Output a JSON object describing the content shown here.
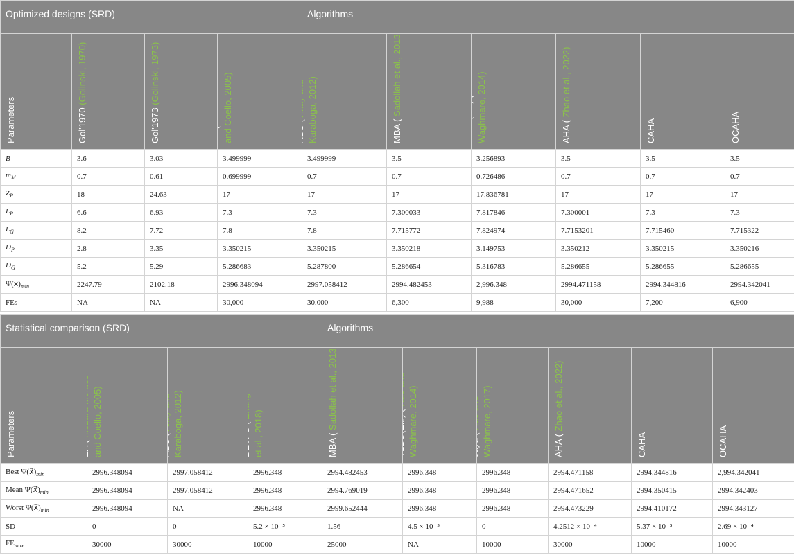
{
  "table1": {
    "header_left": "Optimized designs (SRD)",
    "header_right": "Algorithms",
    "param_header": "Parameters",
    "columns": [
      {
        "name": "Gol'1970",
        "cite_lines": [
          "(Golinski, 1970)"
        ]
      },
      {
        "name": "Gol'1973",
        "cite_lines": [
          "(Golinski, 1973)"
        ]
      },
      {
        "name": "EA (",
        "cite_lines": [
          "Mezura-Montes",
          "and Coello, 2005)"
        ]
      },
      {
        "name": "ABC (",
        "cite_lines": [
          "Akay and",
          "Karaboga, 2012)"
        ]
      },
      {
        "name": "MBA (",
        "cite_lines": [
          "Sadollah et al., 2013)"
        ]
      },
      {
        "name": "TLBO(Elt.) (",
        "cite_lines": [
          "Rao and",
          "Waghmare, 2014)"
        ]
      },
      {
        "name": "AHA (",
        "cite_lines": [
          "Zhao et al., 2022)"
        ]
      },
      {
        "name": "CAHA",
        "cite_lines": []
      },
      {
        "name": "OCAHA",
        "cite_lines": []
      }
    ],
    "rows": [
      {
        "base": "B",
        "sub": "",
        "values": [
          "3.6",
          "3.03",
          "3.499999",
          "3.499999",
          "3.5",
          "3.256893",
          "3.5",
          "3.5",
          "3.5"
        ]
      },
      {
        "base": "m",
        "sub": "M",
        "values": [
          "0.7",
          "0.61",
          "0.699999",
          "0.7",
          "0.7",
          "0.726486",
          "0.7",
          "0.7",
          "0.7"
        ]
      },
      {
        "base": "Z",
        "sub": "P",
        "values": [
          "18",
          "24.63",
          "17",
          "17",
          "17",
          "17.836781",
          "17",
          "17",
          "17"
        ]
      },
      {
        "base": "L",
        "sub": "P",
        "values": [
          "6.6",
          "6.93",
          "7.3",
          "7.3",
          "7.300033",
          "7.817846",
          "7.300001",
          "7.3",
          "7.3"
        ]
      },
      {
        "base": "L",
        "sub": "G",
        "values": [
          "8.2",
          "7.72",
          "7.8",
          "7.8",
          "7.715772",
          "7.824974",
          "7.7153201",
          "7.715460",
          "7.715322"
        ]
      },
      {
        "base": "D",
        "sub": "P",
        "values": [
          "2.8",
          "3.35",
          "3.350215",
          "3.350215",
          "3.350218",
          "3.149753",
          "3.350212",
          "3.350215",
          "3.350216"
        ]
      },
      {
        "base": "D",
        "sub": "G",
        "values": [
          "5.2",
          "5.29",
          "5.286683",
          "5.287800",
          "5.286654",
          "5.316783",
          "5.286655",
          "5.286655",
          "5.286655"
        ]
      },
      {
        "base": "Ψ(x⃗)",
        "sub": "min",
        "values": [
          "2247.79",
          "2102.18",
          "2996.348094",
          "2997.058412",
          "2994.482453",
          "2,996.348",
          "2994.471158",
          "2994.344816",
          "2994.342041"
        ]
      },
      {
        "base": "FEs",
        "sub": "",
        "values": [
          "NA",
          "NA",
          "30,000",
          "30,000",
          "6,300",
          "9,988",
          "30,000",
          "7,200",
          "6,900"
        ]
      }
    ]
  },
  "table2": {
    "header_left": "Statistical comparison (SRD)",
    "header_right": "Algorithms",
    "param_header": "Parameters",
    "columns": [
      {
        "name": "EA (",
        "cite_lines": [
          "Mezura-Montes",
          "and Coello, 2005)"
        ]
      },
      {
        "name": "ABC (",
        "cite_lines": [
          "Akay and",
          "Karaboga, 2012)"
        ]
      },
      {
        "name": "DETPS (",
        "cite_lines": [
          "Zhang",
          "et al., 2018)"
        ]
      },
      {
        "name": "MBA (",
        "cite_lines": [
          "Sadollah et al., 2013)"
        ]
      },
      {
        "name": "TLBO(Elt.) (",
        "cite_lines": [
          "Rao and",
          "Waghmare, 2014)"
        ]
      },
      {
        "name": "Jaya (",
        "cite_lines": [
          "Rao and",
          "Waghmare, 2017)"
        ]
      },
      {
        "name": "AHA (",
        "cite_lines": [
          "Zhao et al., 2022)"
        ]
      },
      {
        "name": "CAHA",
        "cite_lines": []
      },
      {
        "name": "OCAHA",
        "cite_lines": []
      }
    ],
    "rows": [
      {
        "prefix": "Best ",
        "base": "Ψ(x⃗)",
        "sub": "min",
        "values": [
          "2996.348094",
          "2997.058412",
          "2996.348",
          "2994.482453",
          "2996.348",
          "2996.348",
          "2994.471158",
          "2994.344816",
          "2,994.342041"
        ]
      },
      {
        "prefix": "Mean ",
        "base": "Ψ(x⃗)",
        "sub": "min",
        "values": [
          "2996.348094",
          "2997.058412",
          "2996.348",
          "2994.769019",
          "2996.348",
          "2996.348",
          "2994.471652",
          "2994.350415",
          "2994.342403"
        ]
      },
      {
        "prefix": "Worst ",
        "base": "Ψ(x⃗)",
        "sub": "min",
        "values": [
          "2996.348094",
          "NA",
          "2996.348",
          "2999.652444",
          "2996.348",
          "2996.348",
          "2994.473229",
          "2994.410172",
          "2994.343127"
        ]
      },
      {
        "prefix": "SD",
        "base": "",
        "sub": "",
        "values": [
          "0",
          "0",
          "5.2 × 10⁻⁵",
          "1.56",
          "4.5 × 10⁻⁵",
          "0",
          "4.2512 × 10⁻⁴",
          "5.37 × 10⁻⁵",
          "2.69 × 10⁻⁴"
        ]
      },
      {
        "prefix": "FE",
        "base": "",
        "sub": "max",
        "values": [
          "30000",
          "30000",
          "10000",
          "25000",
          "NA",
          "10000",
          "30000",
          "10000",
          "10000"
        ]
      }
    ]
  }
}
